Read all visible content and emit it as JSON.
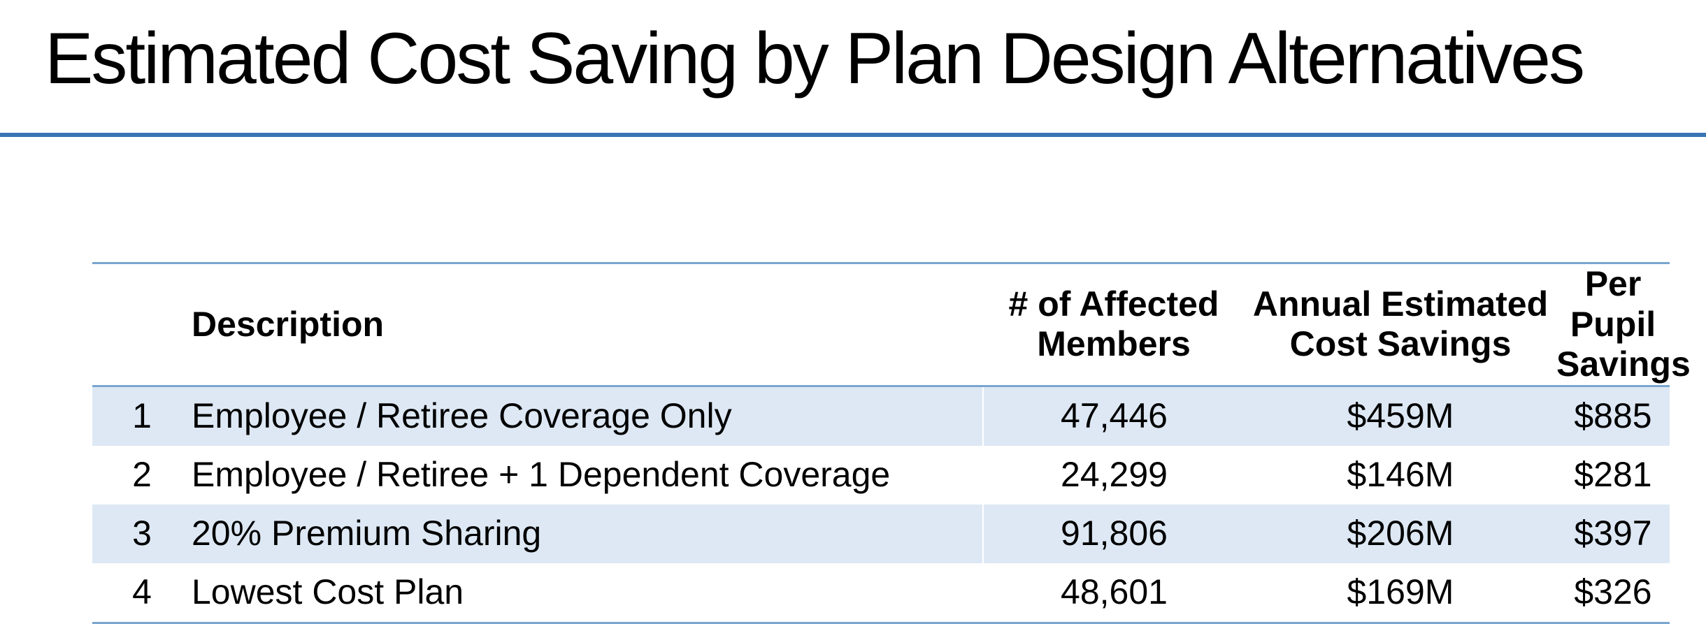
{
  "slide": {
    "title": "Estimated Cost Saving by Plan Design Alternatives"
  },
  "table": {
    "headers": {
      "number": "",
      "description": "Description",
      "members_line1": "# of Affected",
      "members_line2": "Members",
      "savings_line1": "Annual Estimated",
      "savings_line2": "Cost Savings",
      "pupil_line1": "Per Pupil",
      "pupil_line2": "Savings"
    },
    "rows": [
      {
        "number": "1",
        "description": "Employee / Retiree Coverage Only",
        "members": "47,446",
        "savings": "$459M",
        "per_pupil": "$885"
      },
      {
        "number": "2",
        "description": "Employee / Retiree + 1 Dependent Coverage",
        "members": "24,299",
        "savings": "$146M",
        "per_pupil": "$281"
      },
      {
        "number": "3",
        "description": "20% Premium Sharing",
        "members": "91,806",
        "savings": "$206M",
        "per_pupil": "$397"
      },
      {
        "number": "4",
        "description": "Lowest Cost Plan",
        "members": "48,601",
        "savings": "$169M",
        "per_pupil": "$326"
      }
    ]
  },
  "colors": {
    "rule": "#3a74b3",
    "table_border": "#7aa6cf",
    "band": "#dde8f4"
  }
}
